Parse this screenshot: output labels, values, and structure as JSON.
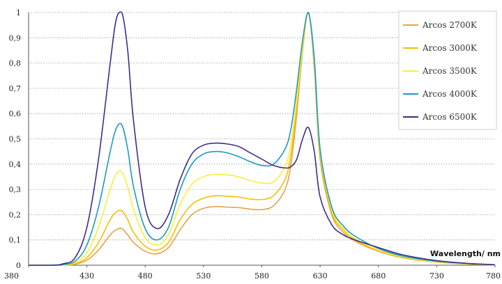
{
  "chart_data": {
    "type": "line",
    "xlabel": "Wavelength/ nm",
    "ylabel": "",
    "xlim": [
      380,
      780
    ],
    "ylim": [
      0,
      1
    ],
    "x_ticks": [
      "380",
      "430",
      "480",
      "530",
      "580",
      "630",
      "680",
      "730",
      "780"
    ],
    "y_ticks": [
      "0",
      "0,1",
      "0,2",
      "0,3",
      "0,4",
      "0,5",
      "0,6",
      "0,7",
      "0,8",
      "0,9",
      "1"
    ],
    "grid": "horizontal dotted",
    "legend_position": "top-right",
    "x": [
      380,
      400,
      410,
      420,
      430,
      440,
      450,
      455,
      460,
      465,
      470,
      480,
      490,
      500,
      510,
      520,
      530,
      540,
      550,
      560,
      570,
      580,
      590,
      600,
      605,
      610,
      615,
      620,
      625,
      630,
      640,
      650,
      660,
      680,
      700,
      730,
      760,
      780
    ],
    "series": [
      {
        "name": "Arcos 2700K",
        "color": "#e8a04c",
        "values": [
          0,
          0,
          0.001,
          0.004,
          0.02,
          0.06,
          0.12,
          0.14,
          0.145,
          0.12,
          0.09,
          0.055,
          0.045,
          0.07,
          0.14,
          0.2,
          0.225,
          0.232,
          0.23,
          0.228,
          0.222,
          0.22,
          0.235,
          0.3,
          0.4,
          0.6,
          0.85,
          1.0,
          0.78,
          0.42,
          0.2,
          0.13,
          0.095,
          0.055,
          0.03,
          0.012,
          0.004,
          0.001
        ]
      },
      {
        "name": "Arcos 3000K",
        "color": "#f5c000",
        "values": [
          0,
          0,
          0.001,
          0.006,
          0.03,
          0.09,
          0.18,
          0.21,
          0.215,
          0.18,
          0.13,
          0.075,
          0.06,
          0.09,
          0.18,
          0.24,
          0.265,
          0.275,
          0.273,
          0.27,
          0.262,
          0.26,
          0.275,
          0.34,
          0.44,
          0.63,
          0.86,
          1.0,
          0.8,
          0.44,
          0.21,
          0.14,
          0.1,
          0.058,
          0.032,
          0.013,
          0.004,
          0.001
        ]
      },
      {
        "name": "Arcos 3500K",
        "color": "#f7ef3a",
        "values": [
          0,
          0,
          0.002,
          0.01,
          0.05,
          0.15,
          0.3,
          0.36,
          0.37,
          0.31,
          0.22,
          0.11,
          0.08,
          0.12,
          0.24,
          0.32,
          0.35,
          0.36,
          0.358,
          0.35,
          0.335,
          0.325,
          0.33,
          0.39,
          0.48,
          0.66,
          0.87,
          1.0,
          0.81,
          0.45,
          0.22,
          0.145,
          0.105,
          0.06,
          0.034,
          0.014,
          0.005,
          0.001
        ]
      },
      {
        "name": "Arcos 4000K",
        "color": "#1a9ac0",
        "values": [
          0,
          0,
          0.003,
          0.016,
          0.08,
          0.23,
          0.45,
          0.54,
          0.555,
          0.46,
          0.31,
          0.145,
          0.1,
          0.15,
          0.3,
          0.4,
          0.44,
          0.45,
          0.445,
          0.43,
          0.41,
          0.395,
          0.4,
          0.46,
          0.54,
          0.7,
          0.89,
          1.0,
          0.82,
          0.46,
          0.23,
          0.155,
          0.115,
          0.066,
          0.037,
          0.016,
          0.006,
          0.002
        ]
      },
      {
        "name": "Arcos 6500K",
        "color": "#3b2e8a",
        "values": [
          0,
          0,
          0.006,
          0.03,
          0.15,
          0.42,
          0.8,
          0.97,
          1.0,
          0.85,
          0.57,
          0.23,
          0.145,
          0.2,
          0.34,
          0.44,
          0.475,
          0.483,
          0.48,
          0.47,
          0.445,
          0.42,
          0.395,
          0.385,
          0.39,
          0.42,
          0.5,
          0.545,
          0.45,
          0.27,
          0.16,
          0.12,
          0.1,
          0.07,
          0.042,
          0.018,
          0.006,
          0.002
        ]
      }
    ]
  }
}
